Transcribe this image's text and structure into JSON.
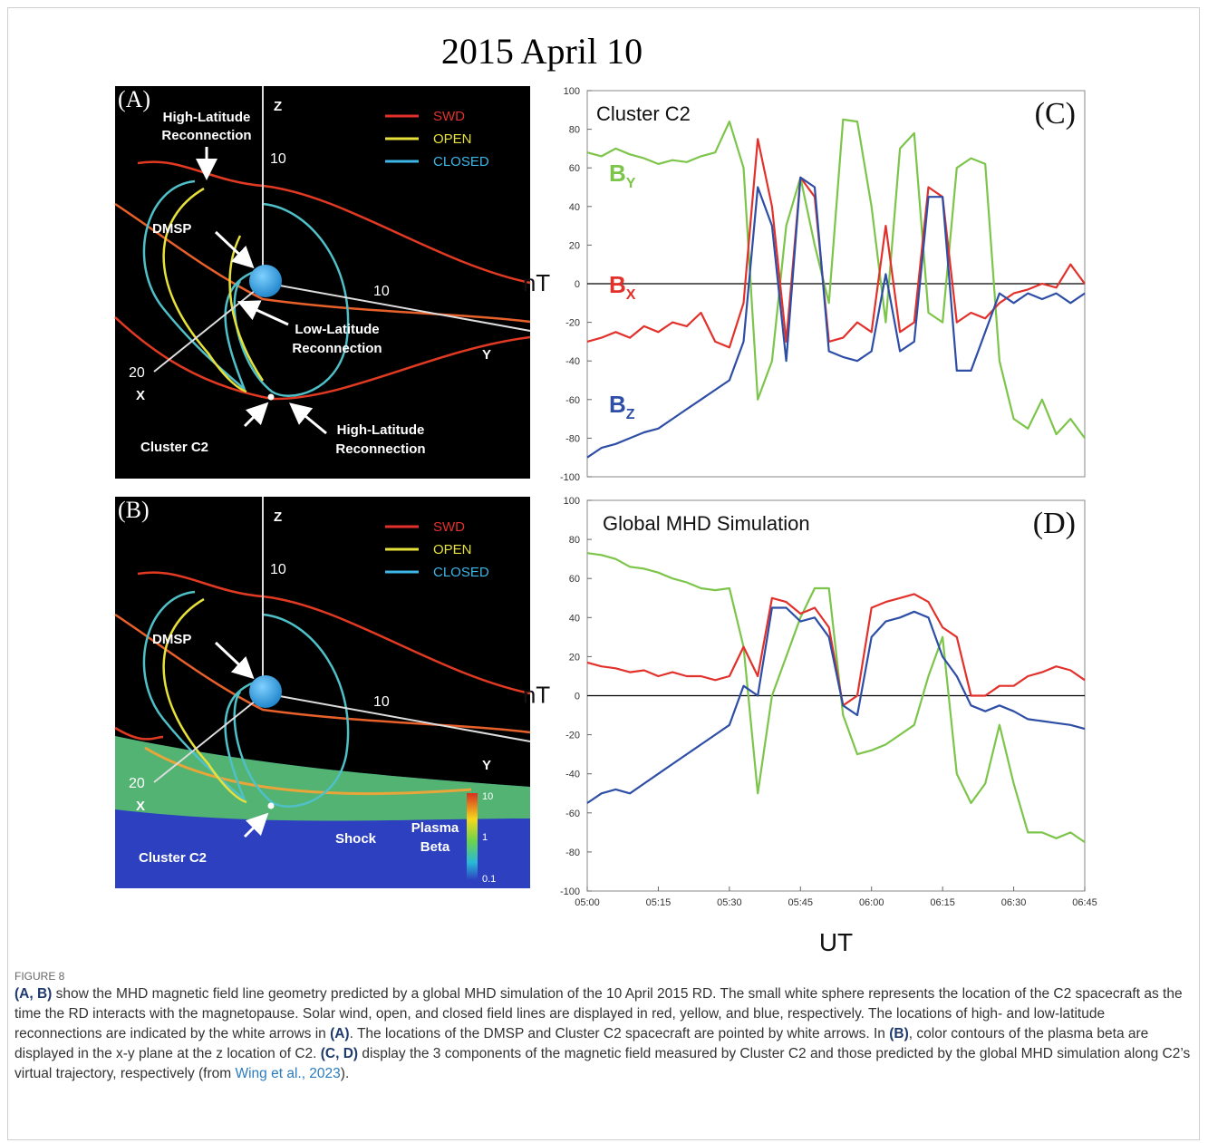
{
  "figure": {
    "title": "2015 April 10",
    "panel_a": {
      "label": "(A)",
      "high_latitude_top": [
        "High-Latitude",
        "Reconnection"
      ],
      "z_label": "Z",
      "legend": [
        "SWD",
        "OPEN",
        "CLOSED"
      ],
      "z_tick": "10",
      "dmsp": "DMSP",
      "y_tick": "10",
      "low_latitude": [
        "Low-Latitude",
        "Reconnection"
      ],
      "y_label": "Y",
      "x_tick": "20",
      "x_label": "X",
      "cluster": "Cluster C2",
      "high_latitude_bottom": [
        "High-Latitude",
        "Reconnection"
      ]
    },
    "panel_b": {
      "label": "(B)",
      "z_label": "Z",
      "legend": [
        "SWD",
        "OPEN",
        "CLOSED"
      ],
      "z_tick": "10",
      "dmsp": "DMSP",
      "y_tick": "10",
      "y_label": "Y",
      "x_tick": "20",
      "x_label": "X",
      "cluster": "Cluster C2",
      "shock": "Shock",
      "plasma_beta": [
        "Plasma",
        "Beta"
      ],
      "colorbar": [
        "10",
        "1",
        "0.1"
      ]
    }
  },
  "chart_data": [
    {
      "type": "line",
      "panel_label": "(C)",
      "title": "Cluster C2",
      "y_label": "nT",
      "x": [
        "05:00",
        "05:03",
        "05:06",
        "05:09",
        "05:12",
        "05:15",
        "05:18",
        "05:21",
        "05:24",
        "05:27",
        "05:30",
        "05:33",
        "05:36",
        "05:39",
        "05:42",
        "05:45",
        "05:48",
        "05:51",
        "05:54",
        "05:57",
        "06:00",
        "06:03",
        "06:06",
        "06:09",
        "06:12",
        "06:15",
        "06:18",
        "06:21",
        "06:24",
        "06:27",
        "06:30",
        "06:33",
        "06:36",
        "06:39",
        "06:42",
        "06:45"
      ],
      "xlim": [
        "05:00",
        "06:45"
      ],
      "ylim": [
        -100,
        100
      ],
      "yticks": [
        -100,
        -80,
        -60,
        -40,
        -20,
        0,
        20,
        40,
        60,
        80,
        100
      ],
      "series": [
        {
          "name": "B",
          "subscript": "Y",
          "color": "#7cc54a",
          "values": [
            68,
            66,
            70,
            67,
            65,
            62,
            64,
            63,
            66,
            68,
            84,
            60,
            -60,
            -40,
            30,
            55,
            20,
            -10,
            85,
            84,
            40,
            -20,
            70,
            78,
            -15,
            -20,
            60,
            65,
            62,
            -40,
            -70,
            -75,
            -60,
            -78,
            -70,
            -80
          ]
        },
        {
          "name": "B",
          "subscript": "X",
          "color": "#e2312b",
          "values": [
            -30,
            -28,
            -25,
            -28,
            -22,
            -25,
            -20,
            -22,
            -15,
            -30,
            -33,
            -10,
            75,
            40,
            -30,
            55,
            45,
            -30,
            -28,
            -20,
            -25,
            30,
            -25,
            -20,
            50,
            45,
            -20,
            -15,
            -18,
            -10,
            -5,
            -3,
            0,
            -2,
            10,
            0
          ]
        },
        {
          "name": "B",
          "subscript": "Z",
          "color": "#2e4ea6",
          "values": [
            -90,
            -85,
            -83,
            -80,
            -77,
            -75,
            -70,
            -65,
            -60,
            -55,
            -50,
            -30,
            50,
            30,
            -40,
            55,
            50,
            -35,
            -38,
            -40,
            -35,
            5,
            -35,
            -30,
            45,
            45,
            -45,
            -45,
            -25,
            -5,
            -10,
            -5,
            -8,
            -5,
            -10,
            -5
          ]
        }
      ]
    },
    {
      "type": "line",
      "panel_label": "(D)",
      "title": "Global MHD Simulation",
      "y_label": "nT",
      "x_label": "UT",
      "x": [
        "05:00",
        "05:03",
        "05:06",
        "05:09",
        "05:12",
        "05:15",
        "05:18",
        "05:21",
        "05:24",
        "05:27",
        "05:30",
        "05:33",
        "05:36",
        "05:39",
        "05:42",
        "05:45",
        "05:48",
        "05:51",
        "05:54",
        "05:57",
        "06:00",
        "06:03",
        "06:06",
        "06:09",
        "06:12",
        "06:15",
        "06:18",
        "06:21",
        "06:24",
        "06:27",
        "06:30",
        "06:33",
        "06:36",
        "06:39",
        "06:42",
        "06:45"
      ],
      "xlim": [
        "05:00",
        "06:45"
      ],
      "xticks": [
        "05:00",
        "05:15",
        "05:30",
        "05:45",
        "06:00",
        "06:15",
        "06:30",
        "06:45"
      ],
      "ylim": [
        -100,
        100
      ],
      "yticks": [
        -100,
        -80,
        -60,
        -40,
        -20,
        0,
        20,
        40,
        60,
        80,
        100
      ],
      "series": [
        {
          "color": "#7cc54a",
          "values": [
            73,
            72,
            70,
            66,
            65,
            63,
            60,
            58,
            55,
            54,
            55,
            25,
            -50,
            0,
            20,
            40,
            55,
            55,
            -10,
            -30,
            -28,
            -25,
            -20,
            -15,
            10,
            30,
            -40,
            -55,
            -45,
            -15,
            -45,
            -70,
            -70,
            -73,
            -70,
            -75
          ]
        },
        {
          "color": "#e2312b",
          "values": [
            17,
            15,
            14,
            12,
            13,
            10,
            12,
            10,
            10,
            8,
            10,
            25,
            10,
            50,
            48,
            42,
            45,
            35,
            -5,
            0,
            45,
            48,
            50,
            52,
            48,
            35,
            30,
            0,
            0,
            5,
            5,
            10,
            12,
            15,
            13,
            8
          ]
        },
        {
          "color": "#2e4ea6",
          "values": [
            -55,
            -50,
            -48,
            -50,
            -45,
            -40,
            -35,
            -30,
            -25,
            -20,
            -15,
            5,
            0,
            45,
            45,
            38,
            40,
            30,
            -5,
            -10,
            30,
            38,
            40,
            43,
            40,
            20,
            10,
            -5,
            -8,
            -5,
            -8,
            -12,
            -13,
            -14,
            -15,
            -17
          ]
        }
      ]
    }
  ],
  "caption": {
    "label": "FIGURE 8",
    "parts": [
      "(A, B)",
      " show the MHD magnetic field line geometry predicted by a global MHD simulation of the 10 April 2015 RD. The small white sphere represents the location of the C2 spacecraft as the time the RD interacts with the magnetopause. Solar wind, open, and closed field lines are displayed in red, yellow, and blue, respectively. The locations of high- and low-latitude reconnections are indicated by the white arrows in ",
      "(A)",
      ". The locations of the DMSP and Cluster C2 spacecraft are pointed by white arrows. In ",
      "(B)",
      ", color contours of the plasma beta are displayed in the x-y plane at the z location of C2. ",
      "(C, D)",
      " display the 3 components of the magnetic field measured by Cluster C2 and those predicted by the global MHD simulation along C2’s virtual trajectory, respectively (from ",
      "Wing et al., 2023",
      ")."
    ]
  }
}
